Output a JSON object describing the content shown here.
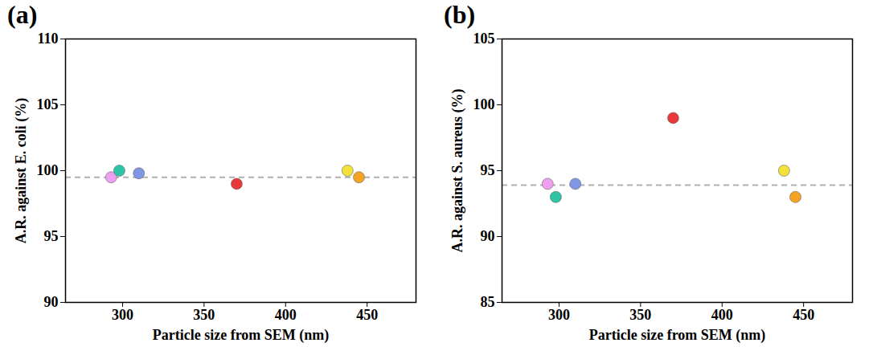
{
  "chart_data": [
    {
      "type": "scatter",
      "title": "(a)",
      "x_label": "Particle size from SEM (nm)",
      "y_label": "A.R. against E. coli (%)",
      "x": [
        293,
        298,
        310,
        370,
        438,
        445
      ],
      "values": [
        99.5,
        100.0,
        99.8,
        99.0,
        100.0,
        99.5
      ],
      "colors": [
        "#ee9ff0",
        "#2ec4a8",
        "#7f96e4",
        "#e8383a",
        "#f3e23a",
        "#f4a324"
      ],
      "marker": "circle",
      "reference_y": 99.5,
      "xlim": [
        265,
        480
      ],
      "xticks": [
        300,
        350,
        400,
        450
      ],
      "ylim": [
        90,
        110
      ],
      "yticks": [
        90,
        95,
        100,
        105,
        110
      ],
      "grid": false
    },
    {
      "type": "scatter",
      "title": "(b)",
      "x_label": "Particle size from SEM (nm)",
      "y_label": "A.R. against S. aureus (%)",
      "x": [
        293,
        298,
        310,
        370,
        438,
        445
      ],
      "values": [
        94.0,
        93.0,
        94.0,
        99.0,
        95.0,
        93.0
      ],
      "colors": [
        "#ee9ff0",
        "#2ec4a8",
        "#7f96e4",
        "#e8383a",
        "#f3e23a",
        "#f4a324"
      ],
      "marker": "circle",
      "reference_y": 93.9,
      "xlim": [
        265,
        480
      ],
      "xticks": [
        300,
        350,
        400,
        450
      ],
      "ylim": [
        85,
        105
      ],
      "yticks": [
        85,
        90,
        95,
        100,
        105
      ],
      "grid": false
    }
  ]
}
